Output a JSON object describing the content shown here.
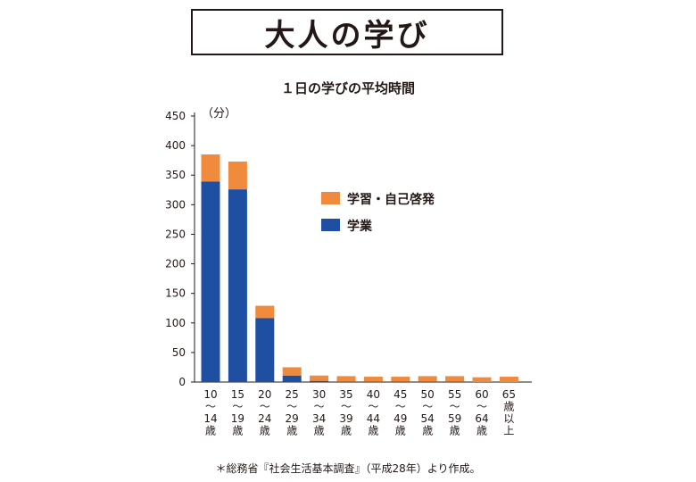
{
  "header": {
    "title": "大人の学び",
    "subtitle": "１日の学びの平均時間"
  },
  "chart_data": {
    "type": "bar",
    "stacked": true,
    "ylabel": "（分）",
    "ylim": [
      0,
      450
    ],
    "yticks": [
      0,
      50,
      100,
      150,
      200,
      250,
      300,
      350,
      400,
      450
    ],
    "categories": [
      [
        "10",
        "～",
        "14",
        "歳"
      ],
      [
        "15",
        "～",
        "19",
        "歳"
      ],
      [
        "20",
        "～",
        "24",
        "歳"
      ],
      [
        "25",
        "～",
        "29",
        "歳"
      ],
      [
        "30",
        "～",
        "34",
        "歳"
      ],
      [
        "35",
        "～",
        "39",
        "歳"
      ],
      [
        "40",
        "～",
        "44",
        "歳"
      ],
      [
        "45",
        "～",
        "49",
        "歳"
      ],
      [
        "50",
        "～",
        "54",
        "歳"
      ],
      [
        "55",
        "～",
        "59",
        "歳"
      ],
      [
        "60",
        "～",
        "64",
        "歳"
      ],
      [
        "65",
        "歳",
        "以",
        "上"
      ]
    ],
    "series": [
      {
        "name": "学業",
        "color": "#1f4fa3",
        "values": [
          339,
          326,
          108,
          11,
          2,
          1,
          1,
          1,
          1,
          1,
          0,
          0
        ]
      },
      {
        "name": "学習・自己啓発",
        "color": "#f08a3c",
        "values": [
          46,
          47,
          21,
          14,
          9,
          9,
          8,
          8,
          9,
          9,
          8,
          9
        ]
      }
    ],
    "legend_position": "upper-middle",
    "legend_order": [
      "学習・自己啓発",
      "学業"
    ],
    "grid": false
  },
  "footnote": "＊総務省『社会生活基本調査』（平成28年）より作成。"
}
